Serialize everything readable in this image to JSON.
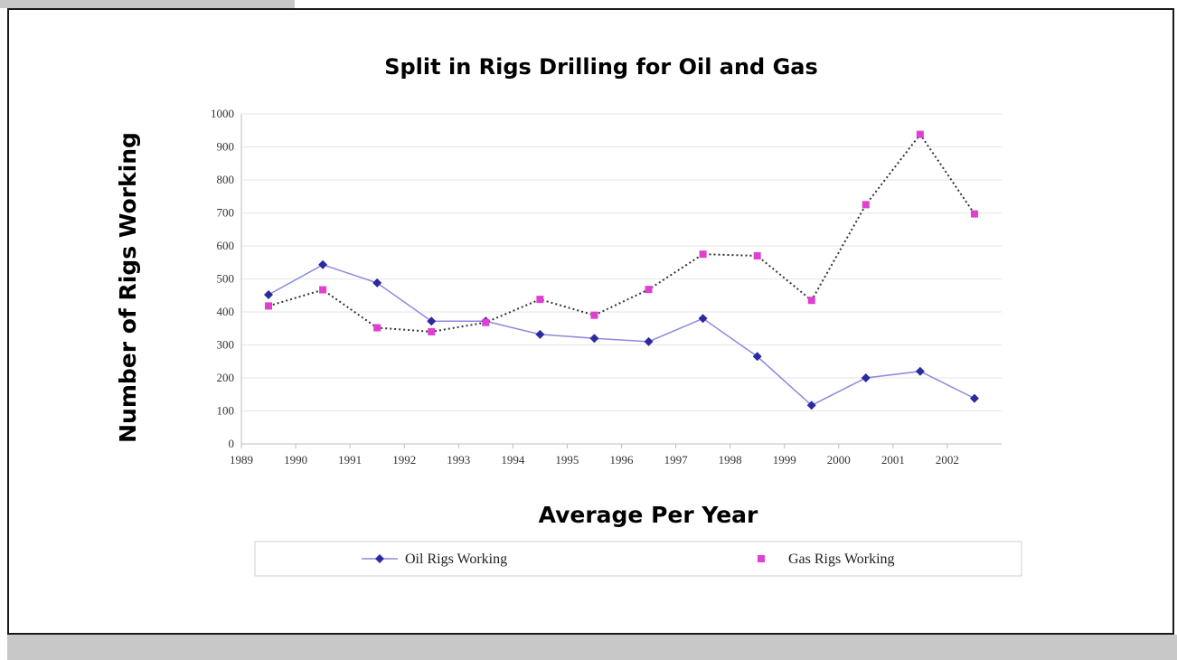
{
  "chart_data": {
    "type": "line",
    "title": "Split in Rigs Drilling for Oil and Gas",
    "xlabel": "Average Per Year",
    "ylabel": "Number of Rigs Working",
    "x_tick_labels": [
      "1989",
      "1990",
      "1991",
      "1992",
      "1993",
      "1994",
      "1995",
      "1996",
      "1997",
      "1998",
      "1999",
      "2000",
      "2001",
      "2002"
    ],
    "y_ticks": [
      0,
      100,
      200,
      300,
      400,
      500,
      600,
      700,
      800,
      900,
      1000
    ],
    "xlim": [
      1989,
      2003
    ],
    "ylim": [
      0,
      1000
    ],
    "grid": "horizontal",
    "legend_position": "bottom",
    "series": [
      {
        "name": "Oil Rigs Working",
        "color": "#2b2b9f",
        "line_color": "#8a8ae0",
        "line_style": "solid",
        "marker": "diamond",
        "x": [
          1989.5,
          1990.5,
          1991.5,
          1992.5,
          1993.5,
          1994.5,
          1995.5,
          1996.5,
          1997.5,
          1998.5,
          1999.5,
          2000.5,
          2001.5,
          2002.5
        ],
        "values": [
          452,
          543,
          488,
          372,
          372,
          332,
          320,
          310,
          380,
          265,
          117,
          200,
          220,
          138
        ]
      },
      {
        "name": "Gas Rigs Working",
        "color": "#e040d0",
        "line_color": "#333333",
        "line_style": "dotted",
        "marker": "square",
        "x": [
          1989.5,
          1990.5,
          1991.5,
          1992.5,
          1993.5,
          1994.5,
          1995.5,
          1996.5,
          1997.5,
          1998.5,
          1999.5,
          2000.5,
          2001.5,
          2002.5
        ],
        "values": [
          418,
          467,
          352,
          340,
          368,
          438,
          390,
          468,
          575,
          570,
          435,
          725,
          938,
          697
        ]
      }
    ]
  }
}
